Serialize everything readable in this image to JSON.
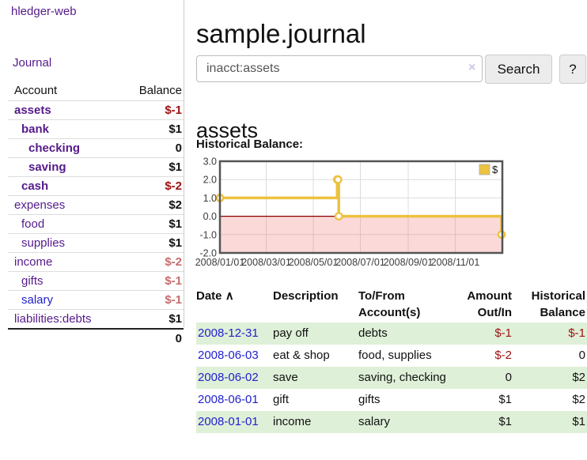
{
  "sidebar": {
    "brand": "hledger-web",
    "journal_link": "Journal",
    "table": {
      "headers": {
        "account": "Account",
        "balance": "Balance"
      },
      "rows": [
        {
          "label": "assets",
          "indent": 0,
          "bold": true,
          "link": "purple",
          "balance": "$-1",
          "bal_class": "neg"
        },
        {
          "label": "bank",
          "indent": 1,
          "bold": true,
          "link": "purple",
          "balance": "$1",
          "bal_class": ""
        },
        {
          "label": "checking",
          "indent": 2,
          "bold": true,
          "link": "purple",
          "balance": "0",
          "bal_class": ""
        },
        {
          "label": "saving",
          "indent": 2,
          "bold": true,
          "link": "purple",
          "balance": "$1",
          "bal_class": ""
        },
        {
          "label": "cash",
          "indent": 1,
          "bold": true,
          "link": "purple",
          "balance": "$-2",
          "bal_class": "neg"
        },
        {
          "label": "expenses",
          "indent": 0,
          "bold": false,
          "link": "purple",
          "balance": "$2",
          "bal_class": ""
        },
        {
          "label": "food",
          "indent": 1,
          "bold": false,
          "link": "purple",
          "balance": "$1",
          "bal_class": ""
        },
        {
          "label": "supplies",
          "indent": 1,
          "bold": false,
          "link": "purple",
          "balance": "$1",
          "bal_class": ""
        },
        {
          "label": "income",
          "indent": 0,
          "bold": false,
          "link": "purple",
          "balance": "$-2",
          "bal_class": "negmuted"
        },
        {
          "label": "gifts",
          "indent": 1,
          "bold": false,
          "link": "purple",
          "balance": "$-1",
          "bal_class": "negmuted"
        },
        {
          "label": "salary",
          "indent": 1,
          "bold": false,
          "link": "blue",
          "balance": "$-1",
          "bal_class": "negmuted"
        },
        {
          "label": "liabilities:debts",
          "indent": 0,
          "bold": false,
          "link": "purple",
          "balance": "$1",
          "bal_class": ""
        }
      ],
      "total": "0"
    }
  },
  "main": {
    "title": "sample.journal",
    "search": {
      "value": "inacct:assets",
      "clear_icon": "×",
      "search_label": "Search",
      "help_label": "?"
    },
    "account_heading": "assets",
    "chart_label": "Historical Balance:"
  },
  "chart_data": {
    "type": "line",
    "step": true,
    "series": [
      {
        "name": "$",
        "color": "#edc240",
        "points": [
          [
            "2008-01-01",
            1
          ],
          [
            "2008-06-01",
            2
          ],
          [
            "2008-06-02",
            2
          ],
          [
            "2008-06-03",
            0
          ],
          [
            "2008-12-31",
            -1
          ]
        ]
      }
    ],
    "xlim": [
      "2008-01-01",
      "2009-01-01"
    ],
    "ylim": [
      -2,
      3
    ],
    "x_tick_labels": [
      "2008/01/01",
      "2008/03/01",
      "2008/05/01",
      "2008/07/01",
      "2008/09/01",
      "2008/11/01"
    ],
    "y_ticks": [
      3,
      2,
      1,
      0,
      -1,
      -2
    ],
    "grid": true,
    "negative_region_fill": "rgba(244,120,120,0.28)",
    "zero_line_color": "#8b0000",
    "border_color": "#545454",
    "legend": {
      "label": "$",
      "position": "top-right",
      "swatch_color": "#edc240"
    }
  },
  "transactions": {
    "sort_arrow": "∧",
    "headers": [
      {
        "l1": "Date",
        "l2": "",
        "align": "l"
      },
      {
        "l1": "Description",
        "l2": "",
        "align": "l"
      },
      {
        "l1": "To/From",
        "l2": "Account(s)",
        "align": "l"
      },
      {
        "l1": "Amount",
        "l2": "Out/In",
        "align": "r"
      },
      {
        "l1": "Historical",
        "l2": "Balance",
        "align": "r"
      }
    ],
    "rows": [
      {
        "date": "2008-12-31",
        "description": "pay off",
        "accounts": "debts",
        "amount": "$-1",
        "amount_class": "neg",
        "balance": "$-1",
        "balance_class": "neg"
      },
      {
        "date": "2008-06-03",
        "description": "eat & shop",
        "accounts": "food, supplies",
        "amount": "$-2",
        "amount_class": "neg",
        "balance": "0",
        "balance_class": ""
      },
      {
        "date": "2008-06-02",
        "description": "save",
        "accounts": "saving, checking",
        "amount": "0",
        "amount_class": "",
        "balance": "$2",
        "balance_class": ""
      },
      {
        "date": "2008-06-01",
        "description": "gift",
        "accounts": "gifts",
        "amount": "$1",
        "amount_class": "",
        "balance": "$2",
        "balance_class": ""
      },
      {
        "date": "2008-01-01",
        "description": "income",
        "accounts": "salary",
        "amount": "$1",
        "amount_class": "",
        "balance": "$1",
        "balance_class": ""
      }
    ]
  }
}
